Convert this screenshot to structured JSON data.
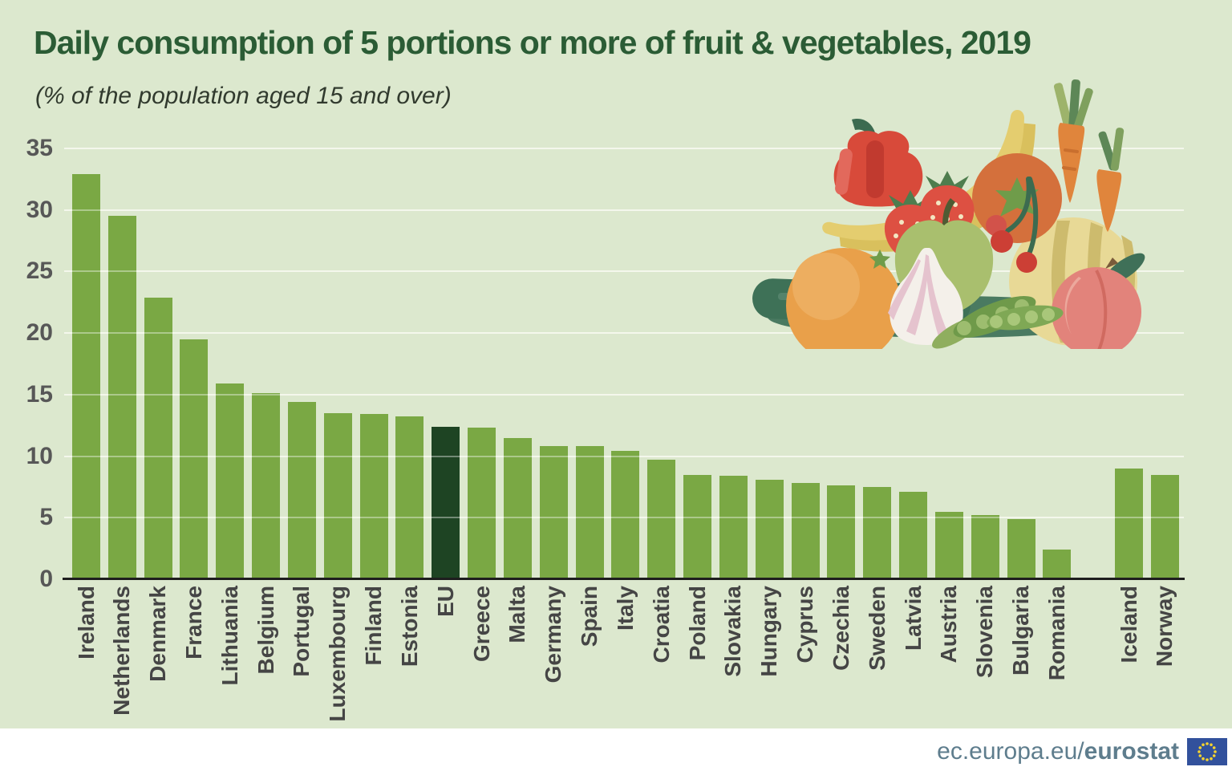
{
  "page": {
    "title": "Daily consumption of 5 portions or more of fruit & vegetables, 2019",
    "subtitle": "(% of the population aged 15 and over)"
  },
  "footer": {
    "url_prefix": "ec.europa.eu/",
    "url_bold": "eurostat",
    "flag_icon": "eu-flag-icon"
  },
  "colors": {
    "background": "#dce8ce",
    "bar": "#7aa844",
    "bar_eu_highlight": "#1e4423",
    "title_text": "#2b5c35",
    "axis_tick_text": "#575757",
    "country_label_text": "#454545",
    "gridline": "#ffffff",
    "axis_line": "#1e1e1e",
    "footer_band": "#ffffff",
    "footer_text": "#5e7d8d",
    "flag_blue": "#32519c",
    "flag_stars": "#f6d32d"
  },
  "illustration": {
    "name": "fruit-vegetables-illustration",
    "items": [
      "cucumber",
      "orange",
      "red-pepper",
      "banana",
      "strawberries",
      "green-apple",
      "tomato",
      "cherries",
      "carrots",
      "melon",
      "peach",
      "garlic",
      "pea-pods"
    ]
  },
  "chart_data": {
    "type": "bar",
    "title": "Daily consumption of 5 portions or more of fruit & vegetables, 2019",
    "subtitle": "(% of the population aged 15 and over)",
    "xlabel": "",
    "ylabel": "% of population aged 15 and over",
    "ylim": [
      0,
      35
    ],
    "yticks": [
      0,
      5,
      10,
      15,
      20,
      25,
      30,
      35
    ],
    "grid": true,
    "legend": "none",
    "highlight_category": "EU",
    "gap_before": [
      "Iceland"
    ],
    "categories": [
      "Ireland",
      "Netherlands",
      "Denmark",
      "France",
      "Lithuania",
      "Belgium",
      "Portugal",
      "Luxembourg",
      "Finland",
      "Estonia",
      "EU",
      "Greece",
      "Malta",
      "Germany",
      "Spain",
      "Italy",
      "Croatia",
      "Poland",
      "Slovakia",
      "Hungary",
      "Cyprus",
      "Czechia",
      "Sweden",
      "Latvia",
      "Austria",
      "Slovenia",
      "Bulgaria",
      "Romania",
      "Iceland",
      "Norway"
    ],
    "values": [
      32.9,
      29.5,
      22.9,
      19.5,
      15.9,
      15.1,
      14.4,
      13.5,
      13.4,
      13.2,
      12.4,
      12.3,
      11.5,
      10.8,
      10.8,
      10.4,
      9.7,
      8.5,
      8.4,
      8.1,
      7.8,
      7.6,
      7.5,
      7.1,
      5.5,
      5.2,
      4.9,
      2.4,
      9.0,
      8.5
    ]
  }
}
